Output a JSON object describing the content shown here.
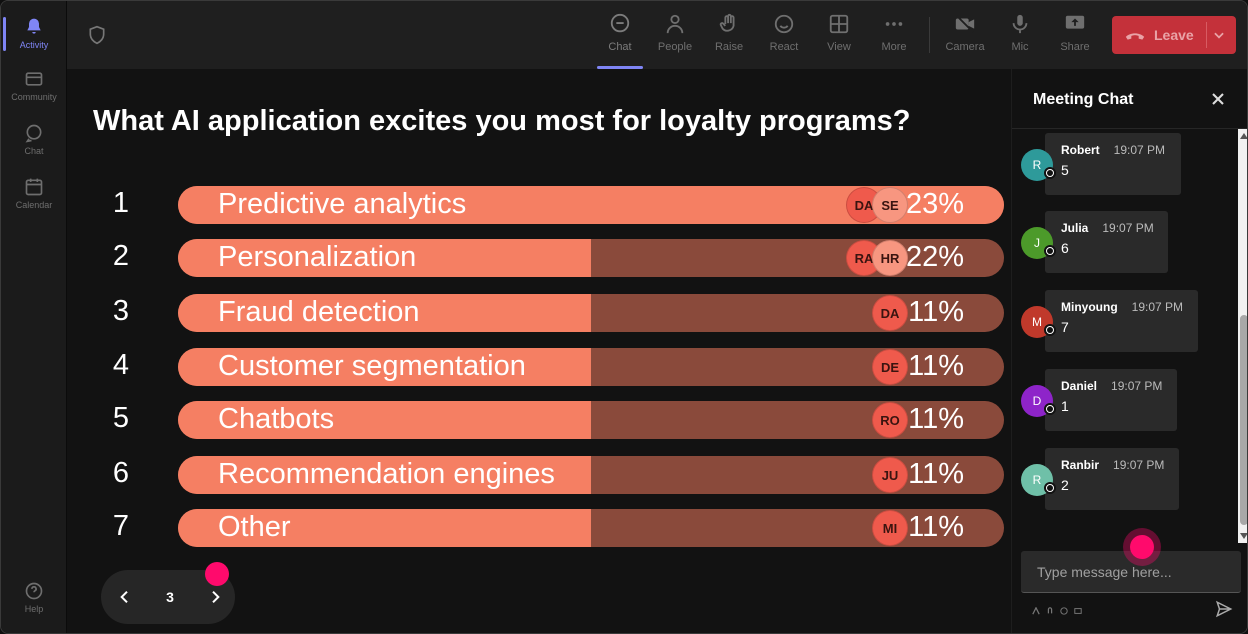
{
  "rail": [
    {
      "label": "Activity",
      "icon": "bell-icon",
      "active": true
    },
    {
      "label": "Community",
      "icon": "community-icon",
      "active": false
    },
    {
      "label": "Chat",
      "icon": "chat-icon",
      "active": false
    },
    {
      "label": "Calendar",
      "icon": "calendar-icon",
      "active": false
    },
    {
      "label": "Help",
      "icon": "help-icon",
      "active": false
    }
  ],
  "toolbar": {
    "chat": "Chat",
    "people": "People",
    "raise": "Raise",
    "react": "React",
    "view": "View",
    "more": "More",
    "camera": "Camera",
    "mic": "Mic",
    "share": "Share",
    "leave": "Leave"
  },
  "poll": {
    "question": "What AI application excites you most for loyalty programs?",
    "options": [
      {
        "num": "1",
        "label": "Predictive analytics",
        "percent": "23%",
        "fill": 1.0,
        "voters": [
          "DA",
          "SE"
        ]
      },
      {
        "num": "2",
        "label": "Personalization",
        "percent": "22%",
        "fill": 0.5,
        "voters": [
          "RA",
          "HR"
        ]
      },
      {
        "num": "3",
        "label": "Fraud detection",
        "percent": "11%",
        "fill": 0.5,
        "voters": [
          "DA"
        ]
      },
      {
        "num": "4",
        "label": "Customer segmentation",
        "percent": "11%",
        "fill": 0.5,
        "voters": [
          "DE"
        ]
      },
      {
        "num": "5",
        "label": "Chatbots",
        "percent": "11%",
        "fill": 0.5,
        "voters": [
          "RO"
        ]
      },
      {
        "num": "6",
        "label": "Recommendation engines",
        "percent": "11%",
        "fill": 0.5,
        "voters": [
          "JU"
        ]
      },
      {
        "num": "7",
        "label": "Other",
        "percent": "11%",
        "fill": 0.5,
        "voters": [
          "MI"
        ]
      }
    ],
    "page": "3"
  },
  "chat": {
    "title": "Meeting Chat",
    "messages": [
      {
        "initial": "R",
        "name": "Robert",
        "time": "19:07 PM",
        "text": "5",
        "color": "#2e9a9a"
      },
      {
        "initial": "J",
        "name": "Julia",
        "time": "19:07 PM",
        "text": "6",
        "color": "#4c9a2a"
      },
      {
        "initial": "M",
        "name": "Minyoung",
        "time": "19:07 PM",
        "text": "7",
        "color": "#c0392b"
      },
      {
        "initial": "D",
        "name": "Daniel",
        "time": "19:07 PM",
        "text": "1",
        "color": "#8e24c9"
      },
      {
        "initial": "R",
        "name": "Ranbir",
        "time": "19:07 PM",
        "text": "2",
        "color": "#6fc0a8"
      }
    ],
    "input_placeholder": "Type message here..."
  },
  "colors": {
    "bar_fill": "#f57f63",
    "bar_track": "#8a4a3b",
    "leave": "#c4313a",
    "accent": "#7f85f5",
    "cursor_dot": "#ff0a6c"
  }
}
